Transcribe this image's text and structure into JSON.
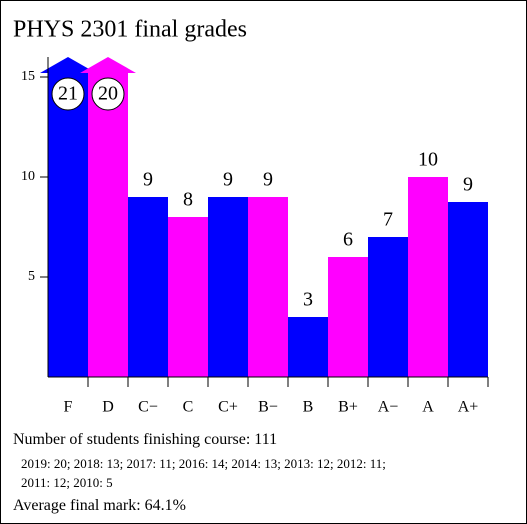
{
  "chart_data": {
    "type": "bar",
    "title": "PHYS 2301 final grades",
    "categories": [
      "F",
      "D",
      "C−",
      "C",
      "C+",
      "B−",
      "B",
      "B+",
      "A−",
      "A",
      "A+"
    ],
    "values": [
      21,
      20,
      9,
      8,
      9,
      9,
      3,
      6,
      7,
      10,
      8.75
    ],
    "value_labels": [
      "21",
      "20",
      "9",
      "8",
      "9",
      "9",
      "3",
      "6",
      "7",
      "10",
      "9"
    ],
    "colors": [
      "#0000ff",
      "#ff00ff",
      "#0000ff",
      "#ff00ff",
      "#0000ff",
      "#ff00ff",
      "#0000ff",
      "#ff00ff",
      "#0000ff",
      "#ff00ff",
      "#0000ff"
    ],
    "ylim": [
      0,
      16
    ],
    "yticks": [
      5,
      10,
      15
    ],
    "grid": false,
    "notes": {
      "students": "Number of students finishing course: 111",
      "history": [
        "2019: 20; 2018: 13; 2017: 11; 2016: 14; 2014: 13; 2013: 12; 2012: 11;",
        "2011: 12; 2010: 5"
      ],
      "average": "Average final mark: 64.1%"
    }
  }
}
